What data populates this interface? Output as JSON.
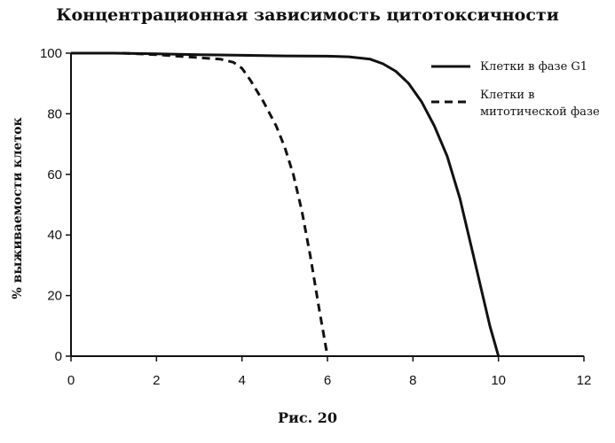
{
  "figure": {
    "caption": "Рис. 20"
  },
  "chart_data": {
    "type": "line",
    "title": "Концентрационная зависимость цитотоксичности",
    "xlabel": "",
    "ylabel": "% выживаемости клеток",
    "xlim": [
      0,
      12
    ],
    "ylim": [
      0,
      100
    ],
    "xticks": [
      0,
      2,
      4,
      6,
      8,
      10,
      12
    ],
    "yticks": [
      0,
      20,
      40,
      60,
      80,
      100
    ],
    "grid": false,
    "legend_position": "top-right",
    "series": [
      {
        "name": "Клетки в фазе G1",
        "style": "solid",
        "color": "#111111",
        "x": [
          0,
          1,
          2,
          3,
          4,
          5,
          6,
          6.5,
          7,
          7.3,
          7.6,
          7.9,
          8.2,
          8.5,
          8.8,
          9.1,
          9.4,
          9.6,
          9.8,
          10.0
        ],
        "y": [
          100,
          100,
          99.8,
          99.5,
          99.3,
          99.1,
          99.0,
          98.8,
          98.0,
          96.5,
          94.0,
          90.0,
          84.0,
          76.0,
          66.0,
          52.0,
          34.0,
          22.0,
          10.0,
          0
        ]
      },
      {
        "name": "Клетки в митотической фазе",
        "style": "dashed",
        "color": "#111111",
        "x": [
          1.2,
          2.0,
          3.0,
          3.5,
          3.8,
          4.0,
          4.2,
          4.5,
          4.8,
          5.0,
          5.2,
          5.4,
          5.6,
          5.8,
          6.0
        ],
        "y": [
          100,
          99.5,
          98.5,
          98.0,
          97.0,
          95.0,
          91.0,
          84.0,
          76.0,
          69.0,
          60.0,
          48.0,
          33.0,
          16.0,
          0
        ]
      }
    ]
  }
}
